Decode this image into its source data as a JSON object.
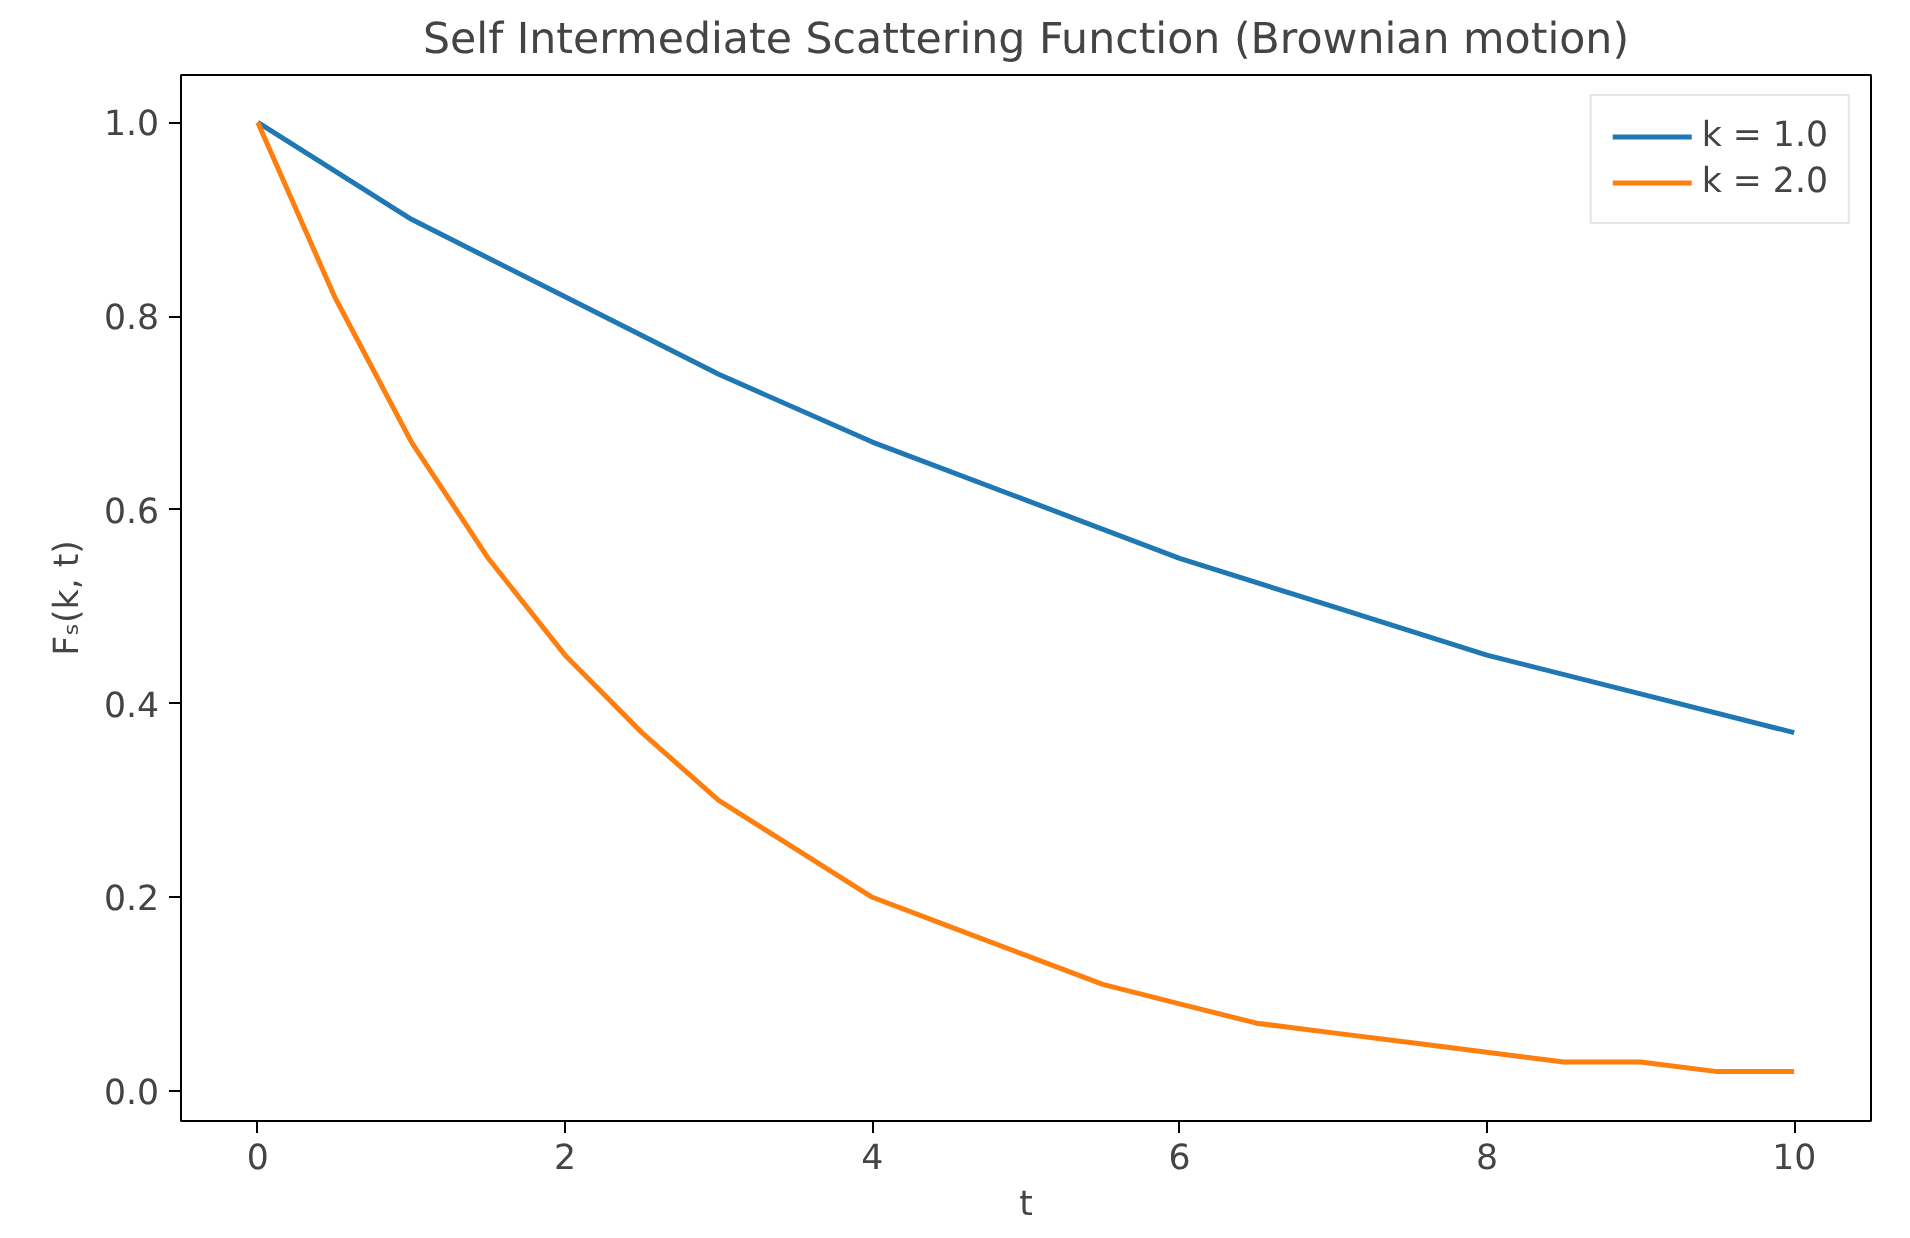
{
  "chart_data": {
    "type": "line",
    "title": "Self Intermediate Scattering Function (Brownian motion)",
    "xlabel": "t",
    "ylabel": "Fₛ(k, t)",
    "xlim": [
      -0.5,
      10.5
    ],
    "ylim": [
      -0.031,
      1.049
    ],
    "xticks": [
      0,
      2,
      4,
      6,
      8,
      10
    ],
    "yticks": [
      {
        "value": 0,
        "label": "0.0"
      },
      0.2,
      0.4,
      0.6,
      0.8,
      {
        "value": 1,
        "label": "1.0"
      }
    ],
    "grid": false,
    "legend": "top right",
    "line_style": "solid",
    "marker": "none",
    "series": [
      {
        "name": "k = 1.0",
        "color": "#1f77b4",
        "x": [
          0,
          1,
          2,
          3,
          4,
          5,
          6,
          7,
          8,
          9,
          10
        ],
        "values": [
          1.0,
          0.9,
          0.82,
          0.74,
          0.67,
          0.61,
          0.55,
          0.5,
          0.45,
          0.41,
          0.37
        ]
      },
      {
        "name": "k = 2.0",
        "color": "#ff7f0e",
        "x": [
          0,
          0.5,
          1,
          1.5,
          2,
          2.5,
          3,
          3.5,
          4,
          4.5,
          5,
          5.5,
          6,
          6.5,
          7,
          7.5,
          8,
          8.5,
          9,
          9.5,
          10
        ],
        "values": [
          1.0,
          0.82,
          0.67,
          0.55,
          0.45,
          0.37,
          0.3,
          0.25,
          0.2,
          0.17,
          0.14,
          0.11,
          0.09,
          0.07,
          0.06,
          0.05,
          0.04,
          0.03,
          0.03,
          0.02,
          0.02
        ]
      }
    ]
  }
}
